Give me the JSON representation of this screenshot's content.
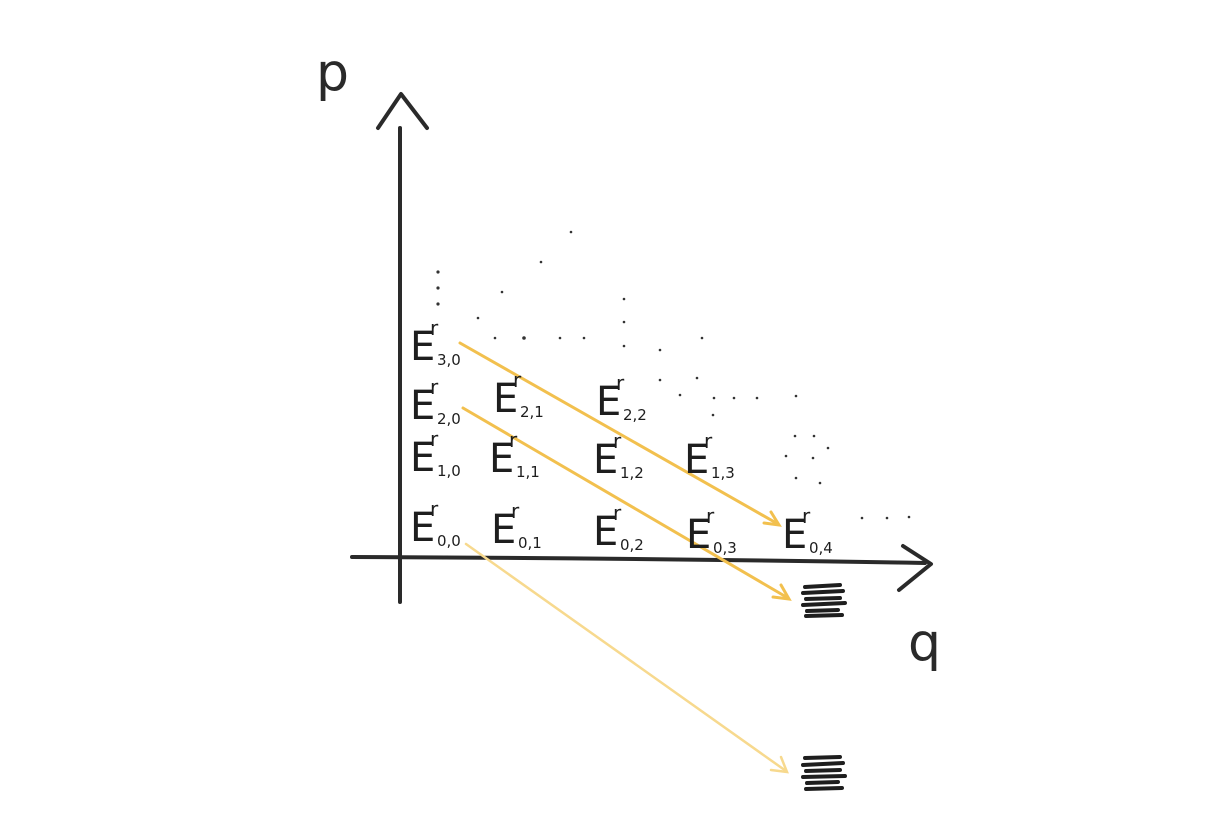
{
  "axes": {
    "vertical_label": "p",
    "horizontal_label": "q"
  },
  "page": {
    "superscript": "r"
  },
  "terms": [
    {
      "main": "E",
      "sub": "0,0"
    },
    {
      "main": "E",
      "sub": "0,1"
    },
    {
      "main": "E",
      "sub": "0,2"
    },
    {
      "main": "E",
      "sub": "0,3"
    },
    {
      "main": "E",
      "sub": "0,4"
    },
    {
      "main": "E",
      "sub": "1,0"
    },
    {
      "main": "E",
      "sub": "1,1"
    },
    {
      "main": "E",
      "sub": "1,2"
    },
    {
      "main": "E",
      "sub": "1,3"
    },
    {
      "main": "E",
      "sub": "2,0"
    },
    {
      "main": "E",
      "sub": "2,1"
    },
    {
      "main": "E",
      "sub": "2,2"
    },
    {
      "main": "E",
      "sub": "3,0"
    }
  ],
  "colors": {
    "ink": "#222222",
    "diagonal_strong": "#f2c04e",
    "diagonal_light": "#f7d98e"
  },
  "icons": {
    "targets": "scribble-icon"
  }
}
